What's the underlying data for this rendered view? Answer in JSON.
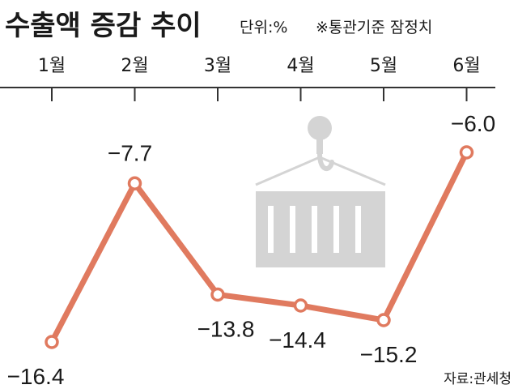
{
  "header": {
    "title": "수출액 증감 추이",
    "unit_note": "단위:%",
    "basis_note": "※통관기준 잠정치"
  },
  "source": "자료:관세청",
  "colors": {
    "line": "#e07a5f",
    "axis": "#333333",
    "illustration": "#d4d4d4",
    "text": "#1a1a1a"
  },
  "illustration": {
    "icon": "crane-hook-cargo-container-icon"
  },
  "chart_data": {
    "type": "line",
    "title": "수출액 증감 추이",
    "unit": "%",
    "categories": [
      "1월",
      "2월",
      "3월",
      "4월",
      "5월",
      "6월"
    ],
    "values": [
      -16.4,
      -7.7,
      -13.8,
      -14.4,
      -15.2,
      -6.0
    ],
    "value_labels": [
      "−16.4",
      "−7.7",
      "−13.8",
      "−14.4",
      "−15.2",
      "−6.0"
    ],
    "ylim": [
      -16.4,
      -6.0
    ],
    "grid": false,
    "legend": "none"
  }
}
